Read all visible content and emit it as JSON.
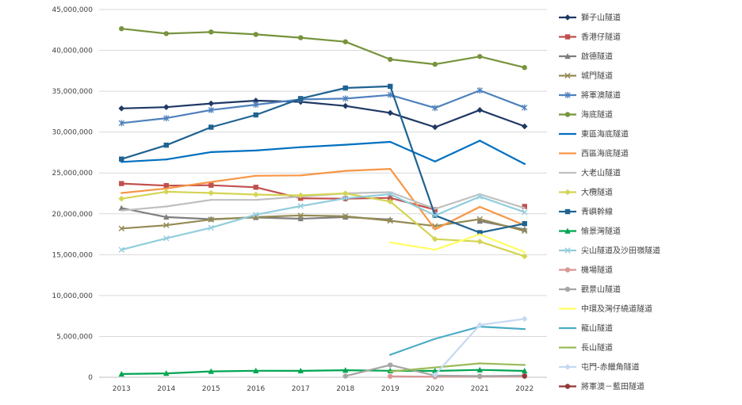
{
  "chart_data": {
    "type": "line",
    "title": "",
    "xlabel": "",
    "ylabel": "",
    "ylim": [
      0,
      45000000
    ],
    "y_ticks": [
      0,
      5000000,
      10000000,
      15000000,
      20000000,
      25000000,
      30000000,
      35000000,
      40000000,
      45000000
    ],
    "y_tick_labels": [
      "0",
      "5,000,000",
      "10,000,000",
      "15,000,000",
      "20,000,000",
      "25,000,000",
      "30,000,000",
      "35,000,000",
      "40,000,000",
      "45,000,000"
    ],
    "categories": [
      "2013",
      "2014",
      "2015",
      "2016",
      "2017",
      "2018",
      "2019",
      "2020",
      "2021",
      "2022"
    ],
    "grid": true,
    "legend_position": "right",
    "series": [
      {
        "name": "獅子山隧道",
        "color": "#1f3864",
        "marker": "diamond",
        "values": [
          32900000,
          33050000,
          33500000,
          33850000,
          33700000,
          33200000,
          32350000,
          30600000,
          32700000,
          30700000
        ]
      },
      {
        "name": "香港仔隧道",
        "color": "#c0504d",
        "marker": "square",
        "values": [
          23700000,
          23450000,
          23500000,
          23250000,
          21900000,
          21850000,
          21950000,
          20500000,
          null,
          20900000
        ]
      },
      {
        "name": "啟德隧道",
        "color": "#7f7f7f",
        "marker": "triangle",
        "values": [
          20700000,
          19600000,
          19350000,
          19550000,
          19400000,
          19600000,
          19300000,
          null,
          19100000,
          18100000
        ]
      },
      {
        "name": "城門隧道",
        "color": "#948a54",
        "marker": "x",
        "values": [
          18200000,
          18600000,
          19300000,
          19600000,
          19800000,
          19700000,
          19150000,
          18500000,
          19350000,
          17900000
        ]
      },
      {
        "name": "將軍澳隧道",
        "color": "#4f81bd",
        "marker": "star",
        "values": [
          31100000,
          31700000,
          32700000,
          33350000,
          34000000,
          34100000,
          34550000,
          32950000,
          35100000,
          33000000
        ]
      },
      {
        "name": "海底隧道",
        "color": "#77933c",
        "marker": "circle",
        "values": [
          42650000,
          42050000,
          42250000,
          41950000,
          41550000,
          41050000,
          38900000,
          38300000,
          39250000,
          37900000
        ]
      },
      {
        "name": "東區海底隧道",
        "color": "#0070c0",
        "marker": "none",
        "values": [
          26350000,
          26650000,
          27550000,
          27750000,
          28150000,
          28450000,
          28800000,
          26400000,
          28950000,
          26100000
        ]
      },
      {
        "name": "西區海底隧道",
        "color": "#f79646",
        "marker": "none",
        "values": [
          22550000,
          23100000,
          23900000,
          24650000,
          24700000,
          25250000,
          25500000,
          18100000,
          20850000,
          18600000
        ]
      },
      {
        "name": "大老山隧道",
        "color": "#c0c0c0",
        "marker": "none",
        "values": [
          20400000,
          20900000,
          21700000,
          21700000,
          22100000,
          22500000,
          22650000,
          20600000,
          22400000,
          20700000
        ]
      },
      {
        "name": "大欖隧道",
        "color": "#d4d454",
        "marker": "diamond",
        "values": [
          21850000,
          22700000,
          22550000,
          22350000,
          22250000,
          22500000,
          21500000,
          16900000,
          16600000,
          14800000
        ]
      },
      {
        "name": "青嶼幹線",
        "color": "#1f6391",
        "marker": "square",
        "values": [
          26700000,
          28400000,
          30600000,
          32100000,
          34100000,
          35400000,
          35600000,
          19800000,
          17700000,
          18800000
        ]
      },
      {
        "name": "愉景灣隧道",
        "color": "#00a550",
        "marker": "triangle",
        "values": [
          400000,
          480000,
          720000,
          800000,
          790000,
          860000,
          800000,
          780000,
          900000,
          780000
        ]
      },
      {
        "name": "尖山隧道及沙田嶺隧道",
        "color": "#92cddc",
        "marker": "x",
        "values": [
          15600000,
          17000000,
          18300000,
          19900000,
          20950000,
          21900000,
          22400000,
          19800000,
          22100000,
          20200000
        ]
      },
      {
        "name": "機場隧道",
        "color": "#d99694",
        "marker": "circle",
        "values": [
          null,
          null,
          null,
          null,
          null,
          null,
          120000,
          60000,
          100000,
          110000
        ]
      },
      {
        "name": "觀景山隧道",
        "color": "#a6a6a6",
        "marker": "circle",
        "values": [
          null,
          null,
          null,
          null,
          null,
          150000,
          1500000,
          200000,
          150000,
          200000
        ]
      },
      {
        "name": "中環及灣仔繞道隧道",
        "color": "#ffff66",
        "marker": "none",
        "values": [
          null,
          null,
          null,
          null,
          null,
          null,
          16500000,
          15600000,
          17500000,
          15300000
        ]
      },
      {
        "name": "龍山隧道",
        "color": "#4bacc6",
        "marker": "none",
        "values": [
          null,
          null,
          null,
          null,
          null,
          null,
          2750000,
          4700000,
          6200000,
          5900000
        ]
      },
      {
        "name": "長山隧道",
        "color": "#9bbb59",
        "marker": "none",
        "values": [
          null,
          null,
          null,
          null,
          null,
          null,
          700000,
          1200000,
          1700000,
          1500000
        ]
      },
      {
        "name": "屯門-赤鱲角隧道",
        "color": "#c6d9f1",
        "marker": "diamond",
        "values": [
          null,
          null,
          null,
          null,
          null,
          null,
          null,
          300000,
          6400000,
          7150000
        ]
      },
      {
        "name": "將軍澳－藍田隧道",
        "color": "#953735",
        "marker": "circle",
        "values": [
          null,
          null,
          null,
          null,
          null,
          null,
          null,
          null,
          null,
          150000
        ]
      }
    ]
  }
}
